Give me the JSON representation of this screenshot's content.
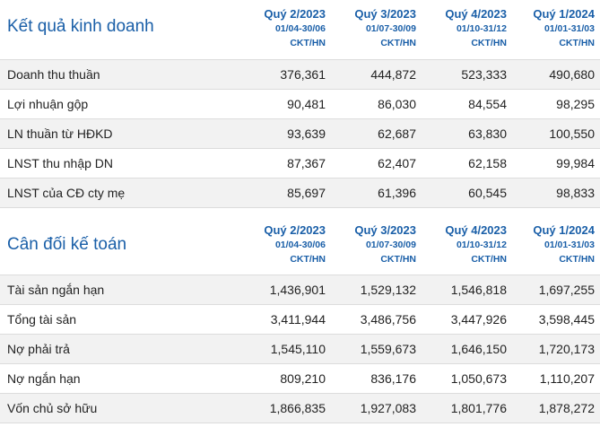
{
  "income": {
    "title": "Kết quả kinh doanh",
    "periods": [
      {
        "quarter": "Quý 2/2023",
        "range": "01/04-30/06",
        "unit": "CKT/HN"
      },
      {
        "quarter": "Quý 3/2023",
        "range": "01/07-30/09",
        "unit": "CKT/HN"
      },
      {
        "quarter": "Quý 4/2023",
        "range": "01/10-31/12",
        "unit": "CKT/HN"
      },
      {
        "quarter": "Quý 1/2024",
        "range": "01/01-31/03",
        "unit": "CKT/HN"
      }
    ],
    "rows": [
      {
        "label": "Doanh thu thuần",
        "values": [
          "376,361",
          "444,872",
          "523,333",
          "490,680"
        ]
      },
      {
        "label": "Lợi nhuận gộp",
        "values": [
          "90,481",
          "86,030",
          "84,554",
          "98,295"
        ]
      },
      {
        "label": "LN thuần từ HĐKD",
        "values": [
          "93,639",
          "62,687",
          "63,830",
          "100,550"
        ]
      },
      {
        "label": "LNST thu nhập DN",
        "values": [
          "87,367",
          "62,407",
          "62,158",
          "99,984"
        ]
      },
      {
        "label": "LNST của CĐ cty mẹ",
        "values": [
          "85,697",
          "61,396",
          "60,545",
          "98,833"
        ]
      }
    ]
  },
  "balance": {
    "title": "Cân đối kế toán",
    "periods": [
      {
        "quarter": "Quý 2/2023",
        "range": "01/04-30/06",
        "unit": "CKT/HN"
      },
      {
        "quarter": "Quý 3/2023",
        "range": "01/07-30/09",
        "unit": "CKT/HN"
      },
      {
        "quarter": "Quý 4/2023",
        "range": "01/10-31/12",
        "unit": "CKT/HN"
      },
      {
        "quarter": "Quý 1/2024",
        "range": "01/01-31/03",
        "unit": "CKT/HN"
      }
    ],
    "rows": [
      {
        "label": "Tài sản ngắn hạn",
        "values": [
          "1,436,901",
          "1,529,132",
          "1,546,818",
          "1,697,255"
        ]
      },
      {
        "label": "Tổng tài sản",
        "values": [
          "3,411,944",
          "3,486,756",
          "3,447,926",
          "3,598,445"
        ]
      },
      {
        "label": "Nợ phải trả",
        "values": [
          "1,545,110",
          "1,559,673",
          "1,646,150",
          "1,720,173"
        ]
      },
      {
        "label": "Nợ ngắn hạn",
        "values": [
          "809,210",
          "836,176",
          "1,050,673",
          "1,110,207"
        ]
      },
      {
        "label": "Vốn chủ sở hữu",
        "values": [
          "1,866,835",
          "1,927,083",
          "1,801,776",
          "1,878,272"
        ]
      }
    ]
  }
}
